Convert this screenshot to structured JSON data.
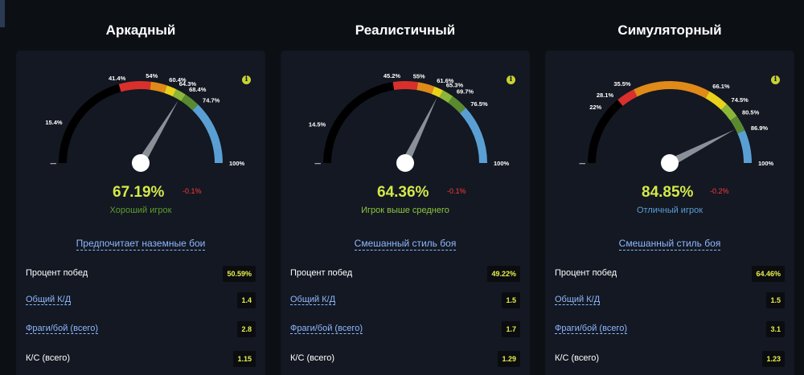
{
  "columns": [
    {
      "title": "Аркадный",
      "score": "67.19%",
      "score_value": 67.19,
      "delta": "-0.1%",
      "rank": "Хороший игрок",
      "rank_color": "#5e9c2e",
      "style": "Предпочитает наземные бои",
      "ticks": [
        "15.4%",
        "41.4%",
        "54%",
        "60.4%",
        "64.3%",
        "68.4%",
        "74.7%",
        "100%"
      ],
      "tick_values": [
        15.4,
        41.4,
        54,
        60.4,
        64.3,
        68.4,
        74.7,
        100
      ],
      "stats": [
        {
          "label": "Процент побед",
          "value": "50.59%",
          "link": false
        },
        {
          "label": "Общий К/Д",
          "value": "1.4",
          "link": true
        },
        {
          "label": "Фраги/бой (всего)",
          "value": "2.8",
          "link": true
        },
        {
          "label": "К/С (всего)",
          "value": "1.15",
          "link": false
        }
      ]
    },
    {
      "title": "Реалистичный",
      "score": "64.36%",
      "score_value": 64.36,
      "delta": "-0.1%",
      "rank": "Игрок выше среднего",
      "rank_color": "#8cc63f",
      "style": "Смешанный стиль боя",
      "ticks": [
        "14.5%",
        "45.2%",
        "55%",
        "61.6%",
        "65.3%",
        "69.7%",
        "76.5%",
        "100%"
      ],
      "tick_values": [
        14.5,
        45.2,
        55,
        61.6,
        65.3,
        69.7,
        76.5,
        100
      ],
      "stats": [
        {
          "label": "Процент побед",
          "value": "49.22%",
          "link": false
        },
        {
          "label": "Общий К/Д",
          "value": "1.5",
          "link": true
        },
        {
          "label": "Фраги/бой (всего)",
          "value": "1.7",
          "link": true
        },
        {
          "label": "К/С (всего)",
          "value": "1.29",
          "link": false
        }
      ]
    },
    {
      "title": "Симуляторный",
      "score": "84.85%",
      "score_value": 84.85,
      "delta": "-0.2%",
      "rank": "Отличный игрок",
      "rank_color": "#5a9fd4",
      "style": "Смешанный стиль боя",
      "ticks": [
        "22%",
        "28.1%",
        "35.5%",
        "66.1%",
        "74.5%",
        "80.5%",
        "86.9%",
        "100%"
      ],
      "tick_values": [
        22,
        28.1,
        35.5,
        66.1,
        74.5,
        80.5,
        86.9,
        100
      ],
      "stats": [
        {
          "label": "Процент побед",
          "value": "64.46%",
          "link": false
        },
        {
          "label": "Общий К/Д",
          "value": "1.5",
          "link": true
        },
        {
          "label": "Фраги/бой (всего)",
          "value": "3.1",
          "link": true
        },
        {
          "label": "К/С (всего)",
          "value": "1.23",
          "link": false
        }
      ]
    }
  ],
  "info_icon_glyph": "i",
  "segment_colors": [
    "#000000",
    "#d9302c",
    "#e08a1a",
    "#e8d21c",
    "#8cb63a",
    "#5a8a30",
    "#5a9fd4"
  ],
  "zero_marker": "—"
}
